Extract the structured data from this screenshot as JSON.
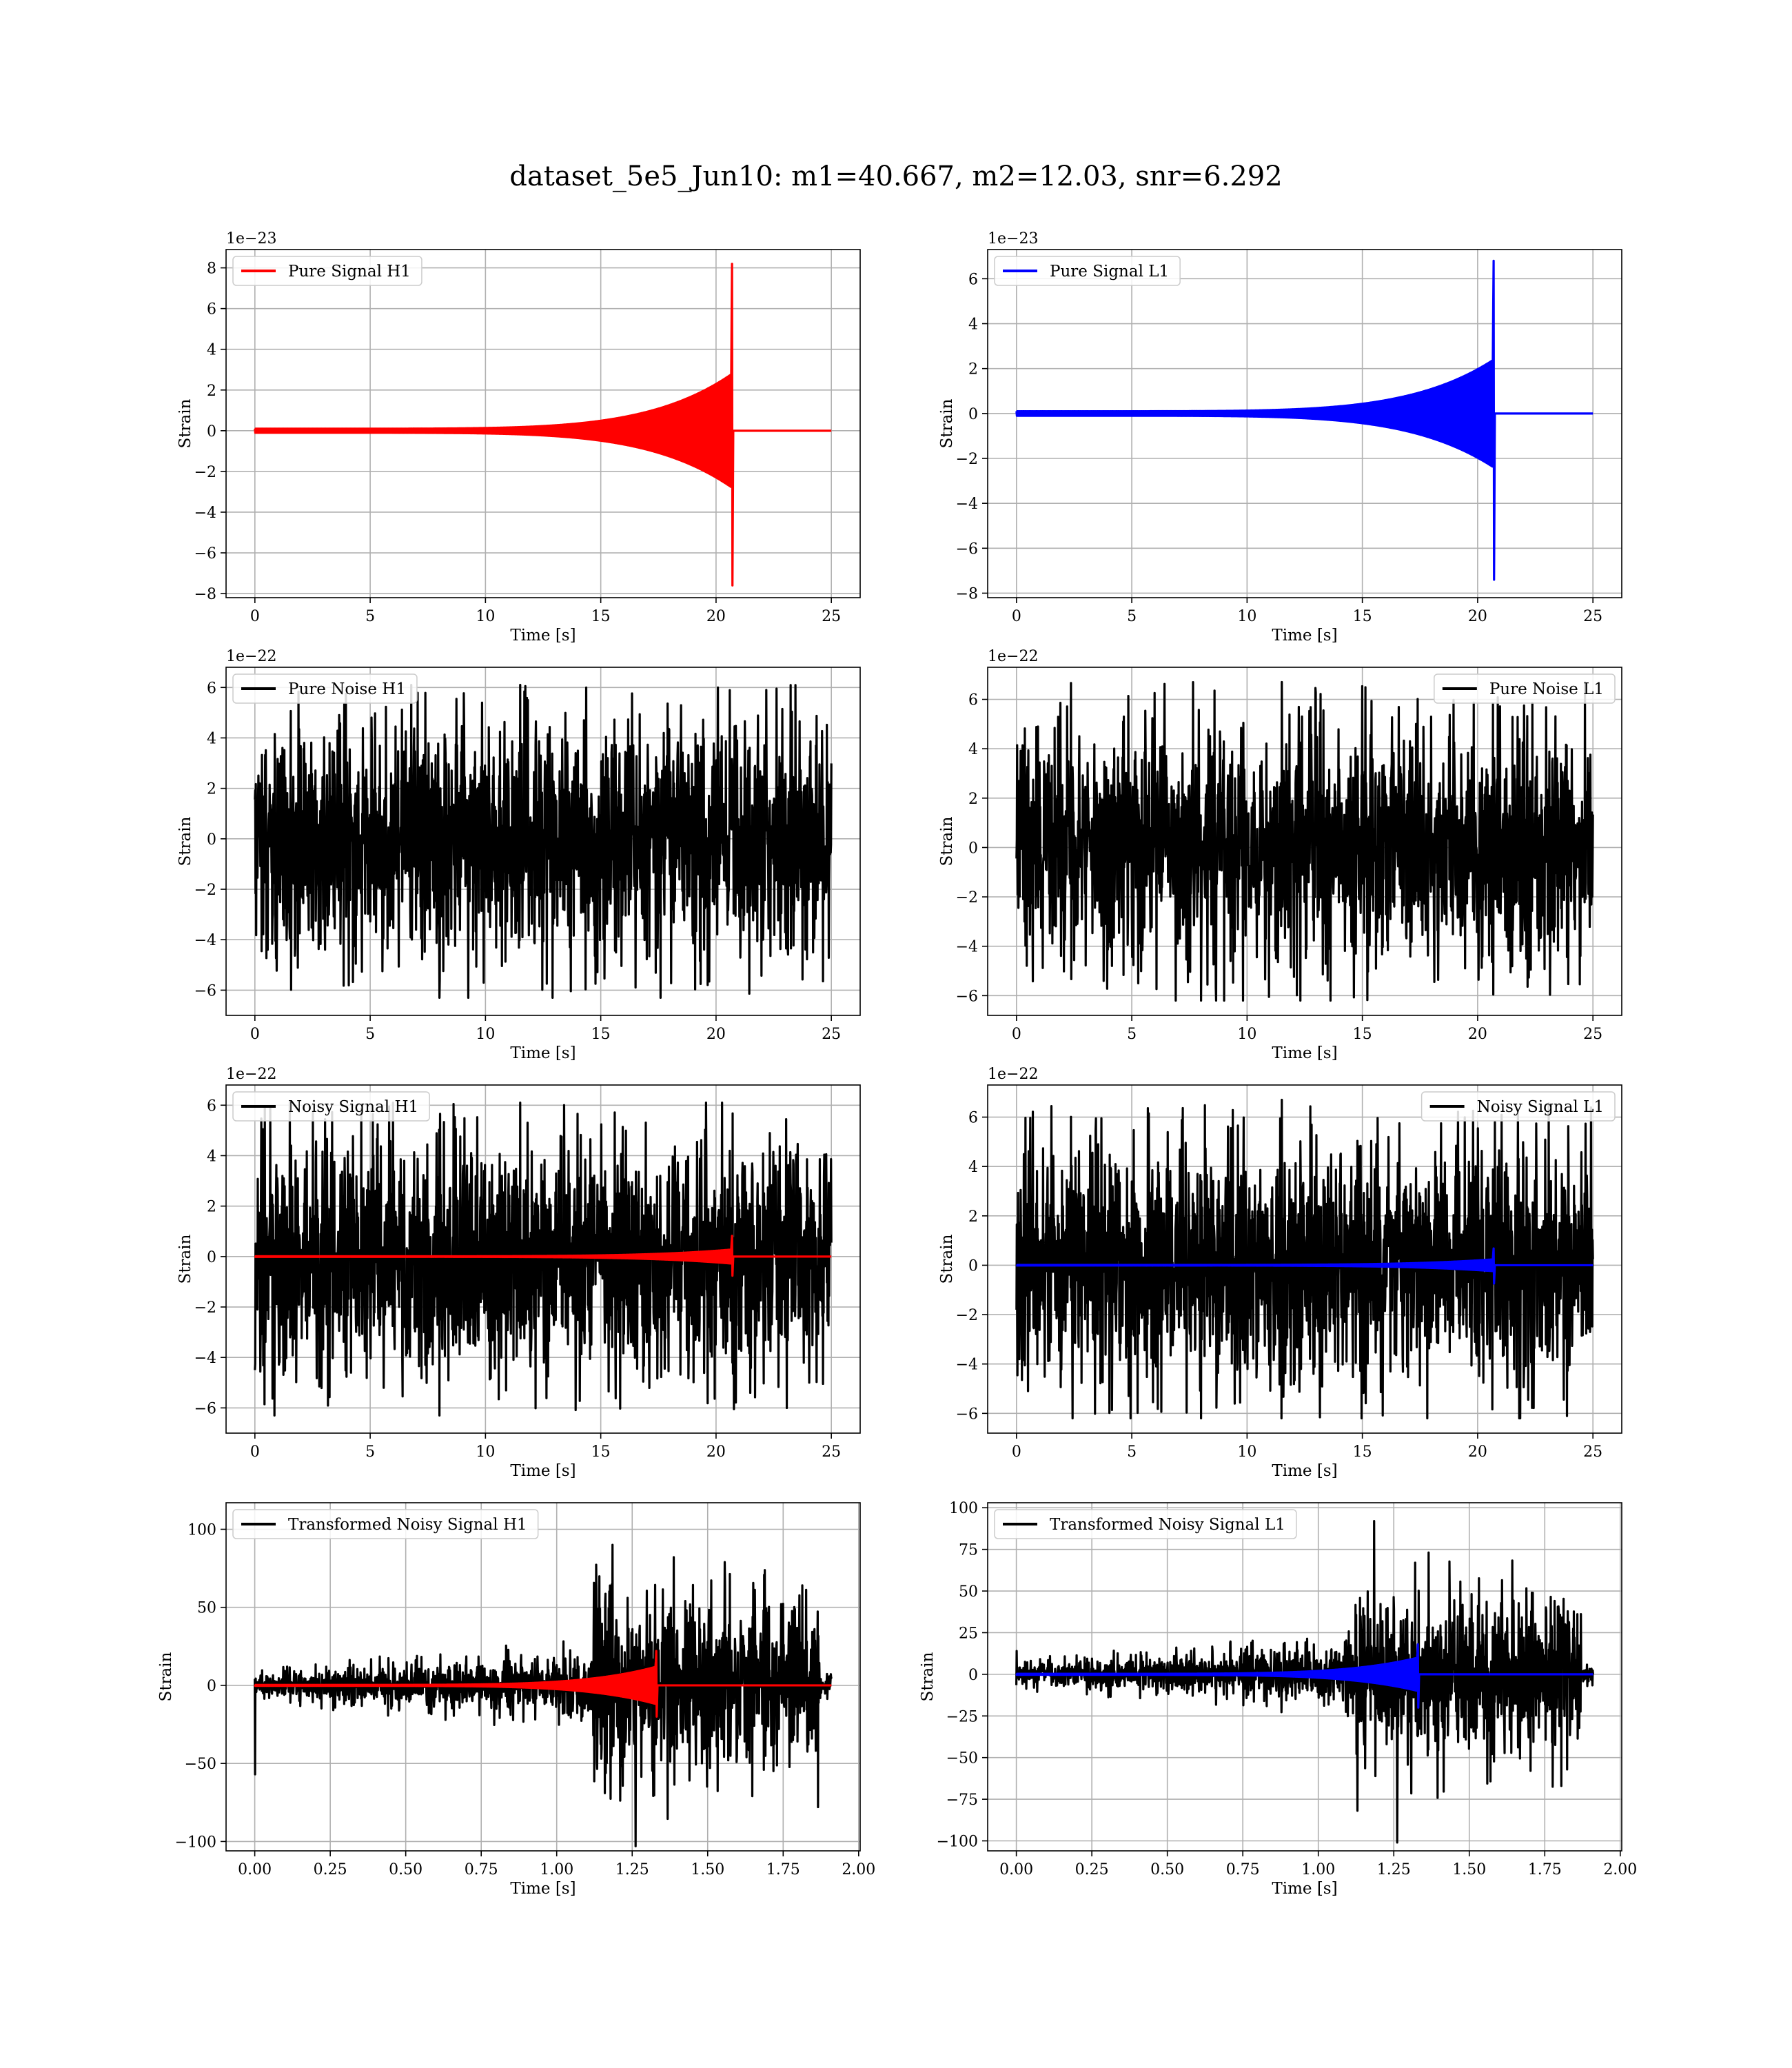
{
  "figure": {
    "title": "dataset_5e5_Jun10: m1=40.667, m2=12.03, snr=6.292"
  },
  "colors": {
    "h1_signal": "#ff0000",
    "l1_signal": "#0000ff",
    "noise": "#000000",
    "grid": "#b0b0b0"
  },
  "chart_data": [
    {
      "id": "pure-signal-h1",
      "type": "line",
      "title": "",
      "xlabel": "Time [s]",
      "ylabel": "Strain",
      "offset_text": "1e−23",
      "xlim": [
        -1.25,
        26.25
      ],
      "ylim": [
        -8.2,
        8.9
      ],
      "xticks": [
        0,
        5,
        10,
        15,
        20,
        25
      ],
      "xtick_labels": [
        "0",
        "5",
        "10",
        "15",
        "20",
        "25"
      ],
      "yticks": [
        -8,
        -6,
        -4,
        -2,
        0,
        2,
        4,
        6,
        8
      ],
      "ytick_labels": [
        "−8",
        "−6",
        "−4",
        "−2",
        "0",
        "2",
        "4",
        "6",
        "8"
      ],
      "grid": true,
      "legend_position": "upper-left",
      "series": [
        {
          "name": "Pure Signal H1",
          "color": "#ff0000",
          "kind": "chirp",
          "x_range": [
            0,
            25
          ],
          "merger_time": 20.7,
          "peak_max": 8.2,
          "peak_min": -7.6,
          "late_amplitude": 2.8,
          "early_amplitude": 0.1
        }
      ]
    },
    {
      "id": "pure-signal-l1",
      "type": "line",
      "title": "",
      "xlabel": "Time [s]",
      "ylabel": "Strain",
      "offset_text": "1e−23",
      "xlim": [
        -1.25,
        26.25
      ],
      "ylim": [
        -8.2,
        7.3
      ],
      "xticks": [
        0,
        5,
        10,
        15,
        20,
        25
      ],
      "xtick_labels": [
        "0",
        "5",
        "10",
        "15",
        "20",
        "25"
      ],
      "yticks": [
        -8,
        -6,
        -4,
        -2,
        0,
        2,
        4,
        6
      ],
      "ytick_labels": [
        "−8",
        "−6",
        "−4",
        "−2",
        "0",
        "2",
        "4",
        "6"
      ],
      "grid": true,
      "legend_position": "upper-left",
      "series": [
        {
          "name": "Pure Signal L1",
          "color": "#0000ff",
          "kind": "chirp",
          "x_range": [
            0,
            25
          ],
          "merger_time": 20.7,
          "peak_max": 6.8,
          "peak_min": -7.4,
          "late_amplitude": 2.4,
          "early_amplitude": 0.1
        }
      ]
    },
    {
      "id": "pure-noise-h1",
      "type": "line",
      "title": "",
      "xlabel": "Time [s]",
      "ylabel": "Strain",
      "offset_text": "1e−22",
      "xlim": [
        -1.25,
        26.25
      ],
      "ylim": [
        -7.0,
        6.8
      ],
      "xticks": [
        0,
        5,
        10,
        15,
        20,
        25
      ],
      "xtick_labels": [
        "0",
        "5",
        "10",
        "15",
        "20",
        "25"
      ],
      "yticks": [
        -6,
        -4,
        -2,
        0,
        2,
        4,
        6
      ],
      "ytick_labels": [
        "−6",
        "−4",
        "−2",
        "0",
        "2",
        "4",
        "6"
      ],
      "grid": true,
      "legend_position": "upper-left",
      "series": [
        {
          "name": "Pure Noise H1",
          "color": "#000000",
          "kind": "noise",
          "x_range": [
            0,
            25
          ],
          "core_amplitude": 3.3,
          "peak_max": 6.1,
          "peak_min": -6.3
        }
      ]
    },
    {
      "id": "pure-noise-l1",
      "type": "line",
      "title": "",
      "xlabel": "Time [s]",
      "ylabel": "Strain",
      "offset_text": "1e−22",
      "xlim": [
        -1.25,
        26.25
      ],
      "ylim": [
        -6.8,
        7.3
      ],
      "xticks": [
        0,
        5,
        10,
        15,
        20,
        25
      ],
      "xtick_labels": [
        "0",
        "5",
        "10",
        "15",
        "20",
        "25"
      ],
      "yticks": [
        -6,
        -4,
        -2,
        0,
        2,
        4,
        6
      ],
      "ytick_labels": [
        "−6",
        "−4",
        "−2",
        "0",
        "2",
        "4",
        "6"
      ],
      "grid": true,
      "legend_position": "upper-right",
      "series": [
        {
          "name": "Pure Noise L1",
          "color": "#000000",
          "kind": "noise",
          "x_range": [
            0,
            25
          ],
          "core_amplitude": 3.3,
          "peak_max": 6.7,
          "peak_min": -6.2
        }
      ]
    },
    {
      "id": "noisy-signal-h1",
      "type": "line",
      "title": "",
      "xlabel": "Time [s]",
      "ylabel": "Strain",
      "offset_text": "1e−22",
      "xlim": [
        -1.25,
        26.25
      ],
      "ylim": [
        -7.0,
        6.8
      ],
      "xticks": [
        0,
        5,
        10,
        15,
        20,
        25
      ],
      "xtick_labels": [
        "0",
        "5",
        "10",
        "15",
        "20",
        "25"
      ],
      "yticks": [
        -6,
        -4,
        -2,
        0,
        2,
        4,
        6
      ],
      "ytick_labels": [
        "−6",
        "−4",
        "−2",
        "0",
        "2",
        "4",
        "6"
      ],
      "grid": true,
      "legend_position": "upper-left",
      "series": [
        {
          "name": "Noisy Signal H1",
          "color": "#000000",
          "kind": "noise",
          "x_range": [
            0,
            25
          ],
          "core_amplitude": 3.3,
          "peak_max": 6.1,
          "peak_min": -6.3
        },
        {
          "name": "",
          "color": "#ff0000",
          "kind": "chirp",
          "x_range": [
            0,
            25
          ],
          "merger_time": 20.7,
          "peak_max": 0.82,
          "peak_min": -0.76,
          "late_amplitude": 0.28,
          "early_amplitude": 0.01
        }
      ]
    },
    {
      "id": "noisy-signal-l1",
      "type": "line",
      "title": "",
      "xlabel": "Time [s]",
      "ylabel": "Strain",
      "offset_text": "1e−22",
      "xlim": [
        -1.25,
        26.25
      ],
      "ylim": [
        -6.8,
        7.3
      ],
      "xticks": [
        0,
        5,
        10,
        15,
        20,
        25
      ],
      "xtick_labels": [
        "0",
        "5",
        "10",
        "15",
        "20",
        "25"
      ],
      "yticks": [
        -6,
        -4,
        -2,
        0,
        2,
        4,
        6
      ],
      "ytick_labels": [
        "−6",
        "−4",
        "−2",
        "0",
        "2",
        "4",
        "6"
      ],
      "grid": true,
      "legend_position": "upper-right",
      "series": [
        {
          "name": "Noisy Signal L1",
          "color": "#000000",
          "kind": "noise",
          "x_range": [
            0,
            25
          ],
          "core_amplitude": 3.3,
          "peak_max": 6.7,
          "peak_min": -6.2
        },
        {
          "name": "",
          "color": "#0000ff",
          "kind": "chirp",
          "x_range": [
            0,
            25
          ],
          "merger_time": 20.7,
          "peak_max": 0.68,
          "peak_min": -0.74,
          "late_amplitude": 0.24,
          "early_amplitude": 0.01
        }
      ]
    },
    {
      "id": "transformed-noisy-signal-h1",
      "type": "line",
      "title": "",
      "xlabel": "Time [s]",
      "ylabel": "Strain",
      "offset_text": "",
      "xlim": [
        -0.095,
        2.005
      ],
      "ylim": [
        -106,
        117
      ],
      "xticks": [
        0,
        0.25,
        0.5,
        0.75,
        1.0,
        1.25,
        1.5,
        1.75,
        2.0
      ],
      "xtick_labels": [
        "0.00",
        "0.25",
        "0.50",
        "0.75",
        "1.00",
        "1.25",
        "1.50",
        "1.75",
        "2.00"
      ],
      "yticks": [
        -100,
        -50,
        0,
        50,
        100
      ],
      "ytick_labels": [
        "−100",
        "−50",
        "0",
        "50",
        "100"
      ],
      "grid": true,
      "legend_position": "upper-left",
      "series": [
        {
          "name": "Transformed Noisy Signal H1",
          "color": "#000000",
          "kind": "whitened",
          "x_range": [
            0,
            1.91
          ],
          "burst_start": 1.12,
          "burst_end": 1.87,
          "early_amplitude": 12,
          "burst_amplitude": 45,
          "peak_max": 90,
          "peak_min": -103,
          "initial_spike": -57
        },
        {
          "name": "",
          "color": "#ff0000",
          "kind": "chirp",
          "x_range": [
            0,
            1.91
          ],
          "merger_time": 1.33,
          "peak_max": 22,
          "peak_min": -20,
          "late_amplitude": 12,
          "early_amplitude": 0.3
        }
      ]
    },
    {
      "id": "transformed-noisy-signal-l1",
      "type": "line",
      "title": "",
      "xlabel": "Time [s]",
      "ylabel": "Strain",
      "offset_text": "",
      "xlim": [
        -0.095,
        2.005
      ],
      "ylim": [
        -106,
        103
      ],
      "xticks": [
        0,
        0.25,
        0.5,
        0.75,
        1.0,
        1.25,
        1.5,
        1.75,
        2.0
      ],
      "xtick_labels": [
        "0.00",
        "0.25",
        "0.50",
        "0.75",
        "1.00",
        "1.25",
        "1.50",
        "1.75",
        "2.00"
      ],
      "yticks": [
        -100,
        -75,
        -50,
        -25,
        0,
        25,
        50,
        75,
        100
      ],
      "ytick_labels": [
        "−100",
        "−75",
        "−50",
        "−25",
        "0",
        "25",
        "50",
        "75",
        "100"
      ],
      "grid": true,
      "legend_position": "upper-left",
      "series": [
        {
          "name": "Transformed Noisy Signal L1",
          "color": "#000000",
          "kind": "whitened",
          "x_range": [
            0,
            1.91
          ],
          "burst_start": 1.12,
          "burst_end": 1.87,
          "early_amplitude": 10,
          "burst_amplitude": 38,
          "peak_max": 92,
          "peak_min": -101,
          "initial_spike": 14
        },
        {
          "name": "",
          "color": "#0000ff",
          "kind": "chirp",
          "x_range": [
            0,
            1.91
          ],
          "merger_time": 1.33,
          "peak_max": 18,
          "peak_min": -20,
          "late_amplitude": 10,
          "early_amplitude": 0.3
        }
      ]
    }
  ]
}
